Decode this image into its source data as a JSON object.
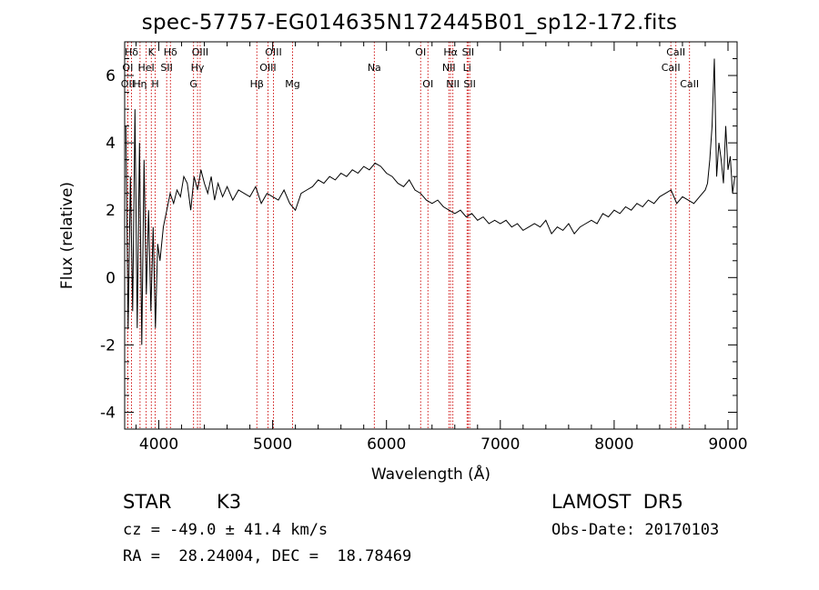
{
  "title": "spec-57757-EG014635N172445B01_sp12-172.fits",
  "chart_data": {
    "type": "line",
    "xlabel": "Wavelength (Å)",
    "ylabel": "Flux (relative)",
    "xlim": [
      3700,
      9080
    ],
    "ylim": [
      -4.5,
      7.0
    ],
    "xticks": [
      4000,
      5000,
      6000,
      7000,
      8000,
      9000
    ],
    "yticks": [
      -4,
      -2,
      0,
      2,
      4,
      6
    ],
    "line_color": "#000000",
    "marker_color": "#cc0000",
    "series": [
      {
        "x": [
          3710,
          3730,
          3750,
          3770,
          3790,
          3810,
          3830,
          3850,
          3870,
          3890,
          3910,
          3930,
          3950,
          3970,
          3990,
          4010,
          4040,
          4070,
          4100,
          4130,
          4160,
          4190,
          4220,
          4250,
          4280,
          4310,
          4340,
          4370,
          4400,
          4430,
          4460,
          4490,
          4520,
          4560,
          4600,
          4650,
          4700,
          4750,
          4800,
          4850,
          4900,
          4950,
          5000,
          5050,
          5100,
          5150,
          5200,
          5250,
          5300,
          5350,
          5400,
          5450,
          5500,
          5550,
          5600,
          5650,
          5700,
          5750,
          5800,
          5850,
          5900,
          5950,
          6000,
          6050,
          6100,
          6150,
          6200,
          6250,
          6300,
          6350,
          6400,
          6450,
          6500,
          6550,
          6600,
          6650,
          6700,
          6750,
          6800,
          6850,
          6900,
          6950,
          7000,
          7050,
          7100,
          7150,
          7200,
          7250,
          7300,
          7350,
          7400,
          7450,
          7500,
          7550,
          7600,
          7650,
          7700,
          7750,
          7800,
          7850,
          7900,
          7950,
          8000,
          8050,
          8100,
          8150,
          8200,
          8250,
          8300,
          8350,
          8400,
          8450,
          8500,
          8550,
          8600,
          8650,
          8700,
          8750,
          8800,
          8820,
          8840,
          8860,
          8880,
          8900,
          8920,
          8940,
          8960,
          8980,
          9000,
          9020,
          9040,
          9060
        ],
        "y": [
          4.5,
          -1.5,
          3.0,
          -1.0,
          5.0,
          -1.5,
          4.0,
          -2.0,
          3.5,
          -0.5,
          2.0,
          -1.0,
          1.5,
          -1.5,
          1.0,
          0.5,
          1.5,
          2.0,
          2.5,
          2.2,
          2.6,
          2.4,
          3.0,
          2.8,
          2.0,
          3.0,
          2.6,
          3.2,
          2.8,
          2.5,
          3.0,
          2.3,
          2.8,
          2.4,
          2.7,
          2.3,
          2.6,
          2.5,
          2.4,
          2.7,
          2.2,
          2.5,
          2.4,
          2.3,
          2.6,
          2.2,
          2.0,
          2.5,
          2.6,
          2.7,
          2.9,
          2.8,
          3.0,
          2.9,
          3.1,
          3.0,
          3.2,
          3.1,
          3.3,
          3.2,
          3.4,
          3.3,
          3.1,
          3.0,
          2.8,
          2.7,
          2.9,
          2.6,
          2.5,
          2.3,
          2.2,
          2.3,
          2.1,
          2.0,
          1.9,
          2.0,
          1.8,
          1.9,
          1.7,
          1.8,
          1.6,
          1.7,
          1.6,
          1.7,
          1.5,
          1.6,
          1.4,
          1.5,
          1.6,
          1.5,
          1.7,
          1.3,
          1.5,
          1.4,
          1.6,
          1.3,
          1.5,
          1.6,
          1.7,
          1.6,
          1.9,
          1.8,
          2.0,
          1.9,
          2.1,
          2.0,
          2.2,
          2.1,
          2.3,
          2.2,
          2.4,
          2.5,
          2.6,
          2.2,
          2.4,
          2.3,
          2.2,
          2.4,
          2.6,
          2.8,
          3.5,
          4.5,
          6.5,
          3.0,
          4.0,
          3.5,
          2.8,
          4.5,
          3.2,
          3.6,
          2.5,
          3.0
        ]
      }
    ],
    "spectral_lines": [
      {
        "label": "Hδ",
        "x": 3760,
        "row": 1
      },
      {
        "label": "K",
        "x": 3934,
        "row": 1
      },
      {
        "label": "Hδ",
        "x": 4102,
        "row": 1
      },
      {
        "label": "OIII",
        "x": 4363,
        "row": 1
      },
      {
        "label": "OIII",
        "x": 5007,
        "row": 1
      },
      {
        "label": "OI",
        "x": 6300,
        "row": 1
      },
      {
        "label": "Hα",
        "x": 6563,
        "row": 1
      },
      {
        "label": "SII",
        "x": 6717,
        "row": 1
      },
      {
        "label": "CaII",
        "x": 8542,
        "row": 1
      },
      {
        "label": "OI",
        "x": 3727,
        "row": 2
      },
      {
        "label": "HeI",
        "x": 3889,
        "row": 2
      },
      {
        "label": "SII",
        "x": 4069,
        "row": 2
      },
      {
        "label": "Hγ",
        "x": 4340,
        "row": 2
      },
      {
        "label": "OIII",
        "x": 4959,
        "row": 2
      },
      {
        "label": "Na",
        "x": 5893,
        "row": 2
      },
      {
        "label": "NII",
        "x": 6548,
        "row": 2
      },
      {
        "label": "Li",
        "x": 6708,
        "row": 2
      },
      {
        "label": "CaII",
        "x": 8498,
        "row": 2
      },
      {
        "label": "OII",
        "x": 3727,
        "row": 3
      },
      {
        "label": "Hη",
        "x": 3835,
        "row": 3
      },
      {
        "label": "H",
        "x": 3968,
        "row": 3
      },
      {
        "label": "G",
        "x": 4305,
        "row": 3
      },
      {
        "label": "Hβ",
        "x": 4861,
        "row": 3
      },
      {
        "label": "Mg",
        "x": 5175,
        "row": 3
      },
      {
        "label": "OI",
        "x": 6364,
        "row": 3
      },
      {
        "label": "NII",
        "x": 6583,
        "row": 3
      },
      {
        "label": "SII",
        "x": 6731,
        "row": 3
      },
      {
        "label": "CaII",
        "x": 8662,
        "row": 3
      }
    ]
  },
  "info": {
    "object_class": "STAR",
    "subclass": "K3",
    "survey": "LAMOST  DR5",
    "cz": "cz = -49.0 ± 41.4 km/s",
    "obs_date": "Obs-Date: 20170103",
    "radec": "RA =  28.24004, DEC =  18.78469"
  }
}
